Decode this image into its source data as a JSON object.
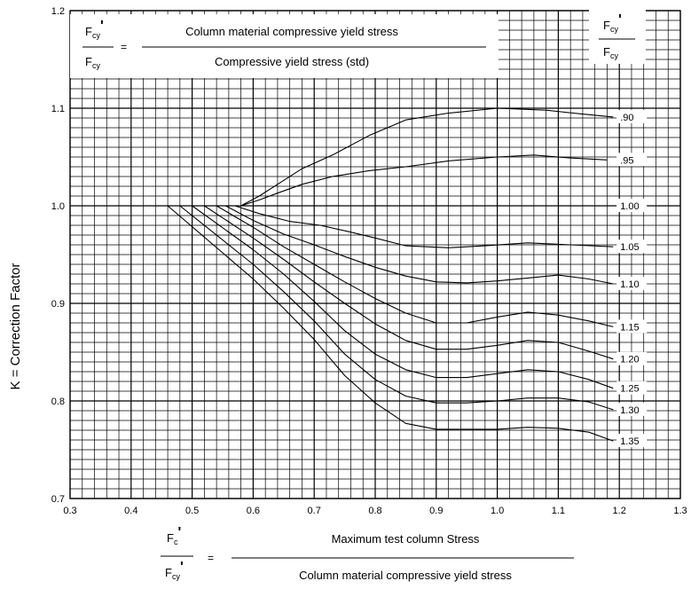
{
  "chart_data": {
    "type": "line",
    "title": "",
    "ylabel": "K = Correction Factor",
    "xlim": [
      0.3,
      1.3
    ],
    "ylim": [
      0.7,
      1.2
    ],
    "x_ticks": [
      "0.3",
      "0.4",
      "0.5",
      "0.6",
      "0.7",
      "0.8",
      "0.9",
      "1.0",
      "1.1",
      "1.2",
      "1.3"
    ],
    "y_ticks": [
      "0.7",
      "0.8",
      "0.9",
      "1.0",
      "1.1",
      "1.2"
    ],
    "grid": true,
    "top_formula": {
      "lhs_num": "F",
      "lhs_num_sub": "cy",
      "lhs_num_prime": "'",
      "lhs_den": "F",
      "lhs_den_sub": "cy",
      "equals": "=",
      "rhs_num": "Column material compressive yield stress",
      "rhs_den": "Compressive yield stress (std)"
    },
    "legend_header": {
      "num": "F",
      "num_sub": "cy",
      "num_prime": "'",
      "den": "F",
      "den_sub": "cy"
    },
    "bottom_formula": {
      "lhs_num": "F",
      "lhs_num_sub": "c",
      "lhs_num_prime": "'",
      "lhs_den": "F",
      "lhs_den_sub": "cy",
      "lhs_den_prime": "'",
      "equals": "=",
      "rhs_num": "Maximum test column Stress",
      "rhs_den": "Column material compressive yield stress"
    },
    "series": [
      {
        "name": ".90",
        "x": [
          0.45,
          0.58,
          0.61,
          0.64,
          0.68,
          0.73,
          0.79,
          0.85,
          0.92,
          1.0,
          1.08,
          1.14,
          1.19
        ],
        "y": [
          1.0,
          1.0,
          1.01,
          1.022,
          1.038,
          1.052,
          1.072,
          1.088,
          1.095,
          1.1,
          1.098,
          1.094,
          1.091
        ]
      },
      {
        "name": ".95",
        "x": [
          0.45,
          0.58,
          0.61,
          0.64,
          0.68,
          0.73,
          0.79,
          0.85,
          0.92,
          1.0,
          1.06,
          1.12,
          1.18
        ],
        "y": [
          1.0,
          1.0,
          1.006,
          1.013,
          1.022,
          1.03,
          1.036,
          1.04,
          1.046,
          1.05,
          1.052,
          1.049,
          1.047
        ]
      },
      {
        "name": "1.00",
        "x": [
          0.3,
          1.2
        ],
        "y": [
          1.0,
          1.0
        ]
      },
      {
        "name": "1.05",
        "x": [
          0.45,
          0.57,
          0.61,
          0.66,
          0.71,
          0.76,
          0.8,
          0.85,
          0.92,
          0.98,
          1.05,
          1.12,
          1.19
        ],
        "y": [
          1.0,
          1.0,
          0.992,
          0.984,
          0.98,
          0.973,
          0.967,
          0.959,
          0.957,
          0.959,
          0.962,
          0.96,
          0.958
        ]
      },
      {
        "name": "1.10",
        "x": [
          0.45,
          0.555,
          0.6,
          0.65,
          0.7,
          0.75,
          0.8,
          0.85,
          0.9,
          0.95,
          1.0,
          1.05,
          1.1,
          1.15,
          1.19
        ],
        "y": [
          1.0,
          1.0,
          0.985,
          0.971,
          0.96,
          0.948,
          0.937,
          0.928,
          0.922,
          0.921,
          0.923,
          0.926,
          0.929,
          0.925,
          0.92
        ]
      },
      {
        "name": "1.15",
        "x": [
          0.45,
          0.54,
          0.6,
          0.65,
          0.7,
          0.75,
          0.8,
          0.85,
          0.9,
          0.95,
          1.0,
          1.05,
          1.1,
          1.15,
          1.19
        ],
        "y": [
          1.0,
          1.0,
          0.978,
          0.958,
          0.94,
          0.922,
          0.905,
          0.89,
          0.88,
          0.88,
          0.886,
          0.891,
          0.888,
          0.882,
          0.876
        ]
      },
      {
        "name": "1.20",
        "x": [
          0.45,
          0.52,
          0.6,
          0.65,
          0.7,
          0.75,
          0.8,
          0.85,
          0.9,
          0.95,
          1.0,
          1.05,
          1.1,
          1.15,
          1.19
        ],
        "y": [
          1.0,
          1.0,
          0.967,
          0.945,
          0.922,
          0.9,
          0.879,
          0.862,
          0.853,
          0.853,
          0.857,
          0.862,
          0.86,
          0.851,
          0.843
        ]
      },
      {
        "name": "1.25",
        "x": [
          0.45,
          0.5,
          0.6,
          0.65,
          0.7,
          0.75,
          0.8,
          0.85,
          0.9,
          0.95,
          1.0,
          1.05,
          1.1,
          1.15,
          1.19
        ],
        "y": [
          1.0,
          1.0,
          0.955,
          0.93,
          0.902,
          0.872,
          0.848,
          0.832,
          0.824,
          0.824,
          0.828,
          0.832,
          0.83,
          0.822,
          0.813
        ]
      },
      {
        "name": "1.30",
        "x": [
          0.45,
          0.48,
          0.6,
          0.65,
          0.7,
          0.75,
          0.8,
          0.85,
          0.9,
          0.95,
          1.0,
          1.05,
          1.1,
          1.15,
          1.19
        ],
        "y": [
          1.0,
          1.0,
          0.94,
          0.912,
          0.882,
          0.848,
          0.822,
          0.805,
          0.798,
          0.798,
          0.8,
          0.803,
          0.803,
          0.799,
          0.791
        ]
      },
      {
        "name": "1.35",
        "x": [
          0.45,
          0.46,
          0.6,
          0.65,
          0.7,
          0.75,
          0.8,
          0.85,
          0.9,
          0.95,
          1.0,
          1.05,
          1.1,
          1.15,
          1.19
        ],
        "y": [
          1.0,
          1.0,
          0.925,
          0.895,
          0.863,
          0.826,
          0.798,
          0.777,
          0.771,
          0.771,
          0.771,
          0.773,
          0.772,
          0.768,
          0.759
        ]
      }
    ]
  }
}
